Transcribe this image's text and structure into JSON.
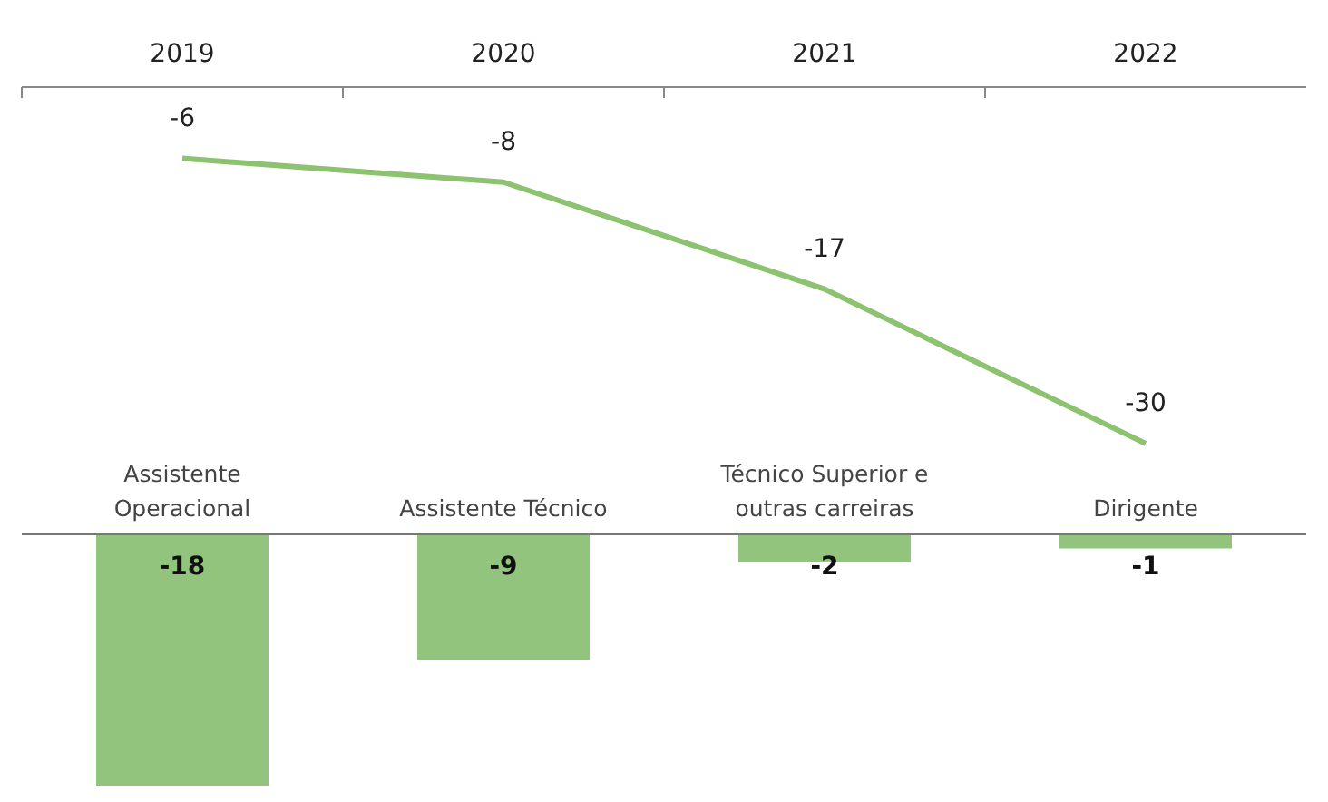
{
  "chart_data": [
    {
      "type": "line",
      "categories": [
        "2019",
        "2020",
        "2021",
        "2022"
      ],
      "series": [
        {
          "color": "#8cc270",
          "values": [
            -6,
            -8,
            -17,
            -30
          ]
        }
      ],
      "data_labels": true,
      "marker": "none"
    },
    {
      "type": "bar",
      "categories": [
        "Assistente Operacional",
        "Assistente Técnico",
        "Técnico Superior e outras carreiras",
        "Dirigente"
      ],
      "series": [
        {
          "color": "#93c47d",
          "values": [
            -18,
            -9,
            -2,
            -1
          ]
        }
      ],
      "data_labels": true
    }
  ]
}
